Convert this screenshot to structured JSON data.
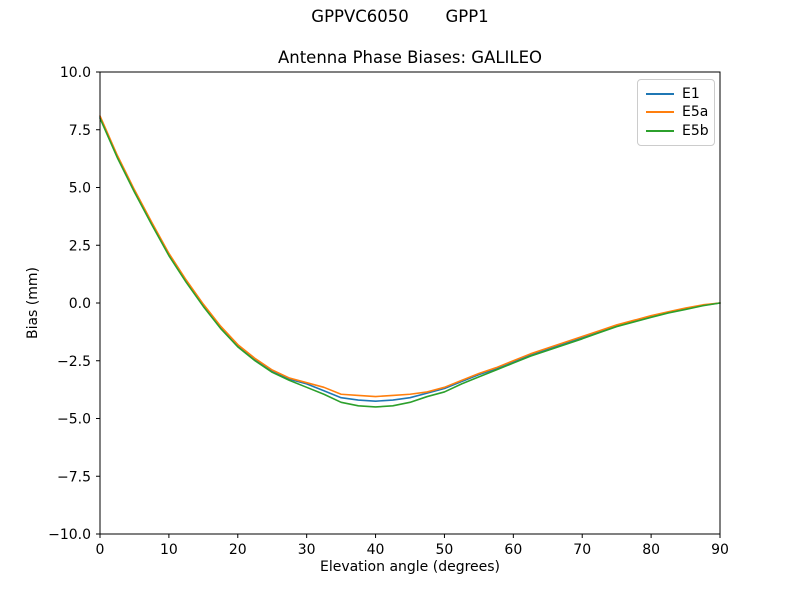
{
  "figure": {
    "suptitle": "GPPVC6050       GPP1",
    "background": "#ffffff"
  },
  "chart_data": {
    "type": "line",
    "title": "Antenna Phase Biases: GALILEO",
    "xlabel": "Elevation angle (degrees)",
    "ylabel": "Bias (mm)",
    "xlim": [
      0,
      90
    ],
    "ylim": [
      -10,
      10
    ],
    "grid": false,
    "xticks": {
      "values": [
        0,
        10,
        20,
        30,
        40,
        50,
        60,
        70,
        80,
        90
      ],
      "labels": [
        "0",
        "10",
        "20",
        "30",
        "40",
        "50",
        "60",
        "70",
        "80",
        "90"
      ]
    },
    "yticks": {
      "values": [
        10,
        7.5,
        5,
        2.5,
        0,
        -2.5,
        -5,
        -7.5,
        -10
      ],
      "labels": [
        "10.0",
        "7.5",
        "5.0",
        "2.5",
        "0.0",
        "−2.5",
        "−5.0",
        "−7.5",
        "−10.0"
      ]
    },
    "x": [
      0,
      2.5,
      5,
      7.5,
      10,
      12.5,
      15,
      17.5,
      20,
      22.5,
      25,
      27.5,
      30,
      32.5,
      35,
      37.5,
      40,
      42.5,
      45,
      47.5,
      50,
      52.5,
      55,
      57.5,
      60,
      62.5,
      65,
      67.5,
      70,
      72.5,
      75,
      77.5,
      80,
      82.5,
      85,
      87.5,
      90
    ],
    "series": [
      {
        "name": "E1",
        "color": "#1f77b4",
        "values": [
          8.05,
          6.35,
          4.85,
          3.45,
          2.1,
          0.95,
          -0.1,
          -1.05,
          -1.85,
          -2.45,
          -2.95,
          -3.3,
          -3.5,
          -3.8,
          -4.1,
          -4.2,
          -4.25,
          -4.2,
          -4.1,
          -3.9,
          -3.7,
          -3.4,
          -3.1,
          -2.85,
          -2.55,
          -2.25,
          -2.0,
          -1.75,
          -1.5,
          -1.25,
          -1.0,
          -0.8,
          -0.6,
          -0.4,
          -0.25,
          -0.1,
          0.0
        ]
      },
      {
        "name": "E5a",
        "color": "#ff7f0e",
        "values": [
          8.1,
          6.4,
          4.9,
          3.5,
          2.15,
          1.0,
          -0.05,
          -1.0,
          -1.8,
          -2.4,
          -2.9,
          -3.25,
          -3.45,
          -3.65,
          -3.95,
          -4.0,
          -4.05,
          -4.0,
          -3.95,
          -3.85,
          -3.65,
          -3.35,
          -3.05,
          -2.8,
          -2.5,
          -2.2,
          -1.95,
          -1.7,
          -1.45,
          -1.2,
          -0.95,
          -0.75,
          -0.55,
          -0.38,
          -0.22,
          -0.08,
          0.0
        ]
      },
      {
        "name": "E5b",
        "color": "#2ca02c",
        "values": [
          8.0,
          6.3,
          4.8,
          3.4,
          2.05,
          0.9,
          -0.15,
          -1.1,
          -1.9,
          -2.5,
          -3.0,
          -3.35,
          -3.65,
          -3.95,
          -4.3,
          -4.45,
          -4.5,
          -4.45,
          -4.3,
          -4.05,
          -3.85,
          -3.5,
          -3.2,
          -2.9,
          -2.6,
          -2.3,
          -2.05,
          -1.8,
          -1.55,
          -1.28,
          -1.02,
          -0.82,
          -0.62,
          -0.43,
          -0.28,
          -0.12,
          0.0
        ]
      }
    ],
    "legend": {
      "position": "upper right",
      "entries": [
        "E1",
        "E5a",
        "E5b"
      ]
    }
  }
}
